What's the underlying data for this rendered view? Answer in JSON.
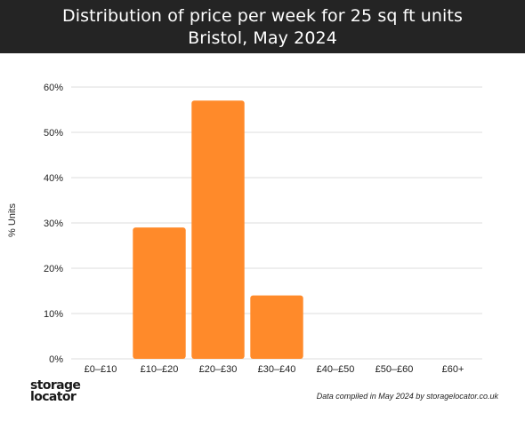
{
  "header": {
    "title_line1": "Distribution of price per week for 25 sq ft units",
    "title_line2": "Bristol, May 2024"
  },
  "chart_data": {
    "type": "bar",
    "categories": [
      "£0–£10",
      "£10–£20",
      "£20–£30",
      "£30–£40",
      "£40–£50",
      "£50–£60",
      "£60+"
    ],
    "values": [
      0,
      29,
      57,
      14,
      0,
      0,
      0
    ],
    "ylabel": "% Units",
    "xlabel": "",
    "ylim": [
      0,
      60
    ],
    "yticks": [
      "0%",
      "10%",
      "20%",
      "30%",
      "40%",
      "50%",
      "60%"
    ],
    "grid": true,
    "bar_color": "#ff8a2a",
    "grid_color": "#dddddd"
  },
  "footer": {
    "logo_line1": "storage",
    "logo_line2": "locator",
    "source": "Data compiled in May 2024 by storagelocator.co.uk"
  }
}
